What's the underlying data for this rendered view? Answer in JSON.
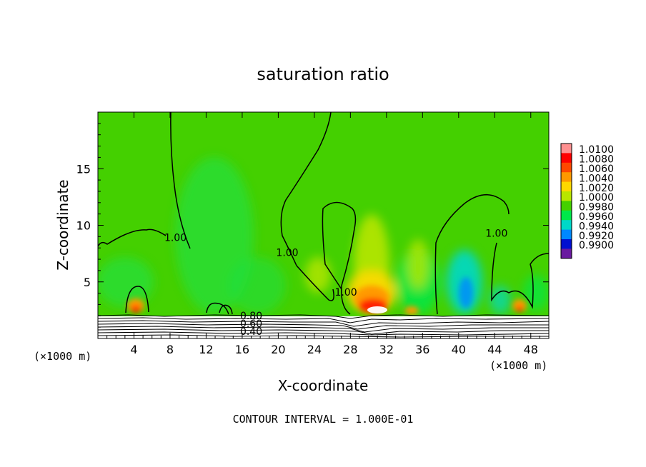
{
  "chart_data": {
    "type": "heatmap",
    "title": "saturation ratio",
    "xlabel": "X-coordinate",
    "ylabel": "Z-coordinate",
    "x_unit_left": "(×1000 m)",
    "x_unit_right": "(×1000 m)",
    "xlim": [
      0,
      50
    ],
    "ylim": [
      0,
      20
    ],
    "x_ticks": [
      "4",
      "8",
      "12",
      "16",
      "20",
      "24",
      "28",
      "32",
      "36",
      "40",
      "44",
      "48"
    ],
    "y_ticks": [
      "5",
      "10",
      "15"
    ],
    "y_tick_values": [
      5,
      10,
      15
    ],
    "colorbar": {
      "labels": [
        "1.0100",
        "1.0080",
        "1.0060",
        "1.0040",
        "1.0020",
        "1.0000",
        "0.9980",
        "0.9960",
        "0.9940",
        "0.9920",
        "0.9900"
      ],
      "colors": [
        "#ff9090",
        "#ff0000",
        "#ff4800",
        "#ff9900",
        "#ffd800",
        "#b8e600",
        "#44d000",
        "#00e84a",
        "#00d8c8",
        "#0088ff",
        "#0010d0",
        "#6a1aa0"
      ]
    },
    "contour_labels": [
      {
        "text": "1.00",
        "x": 8.6,
        "z": 8.6
      },
      {
        "text": "1.00",
        "x": 21.0,
        "z": 7.3
      },
      {
        "text": "1.00",
        "x": 27.5,
        "z": 3.8
      },
      {
        "text": "1.00",
        "x": 44.2,
        "z": 9.0
      },
      {
        "text": "0.80",
        "x": 17.0,
        "z": 1.7
      },
      {
        "text": "0.60",
        "x": 17.0,
        "z": 1.0
      },
      {
        "text": "0.40",
        "x": 17.0,
        "z": 0.3
      }
    ],
    "footer": "CONTOUR INTERVAL = 1.000E-01"
  }
}
